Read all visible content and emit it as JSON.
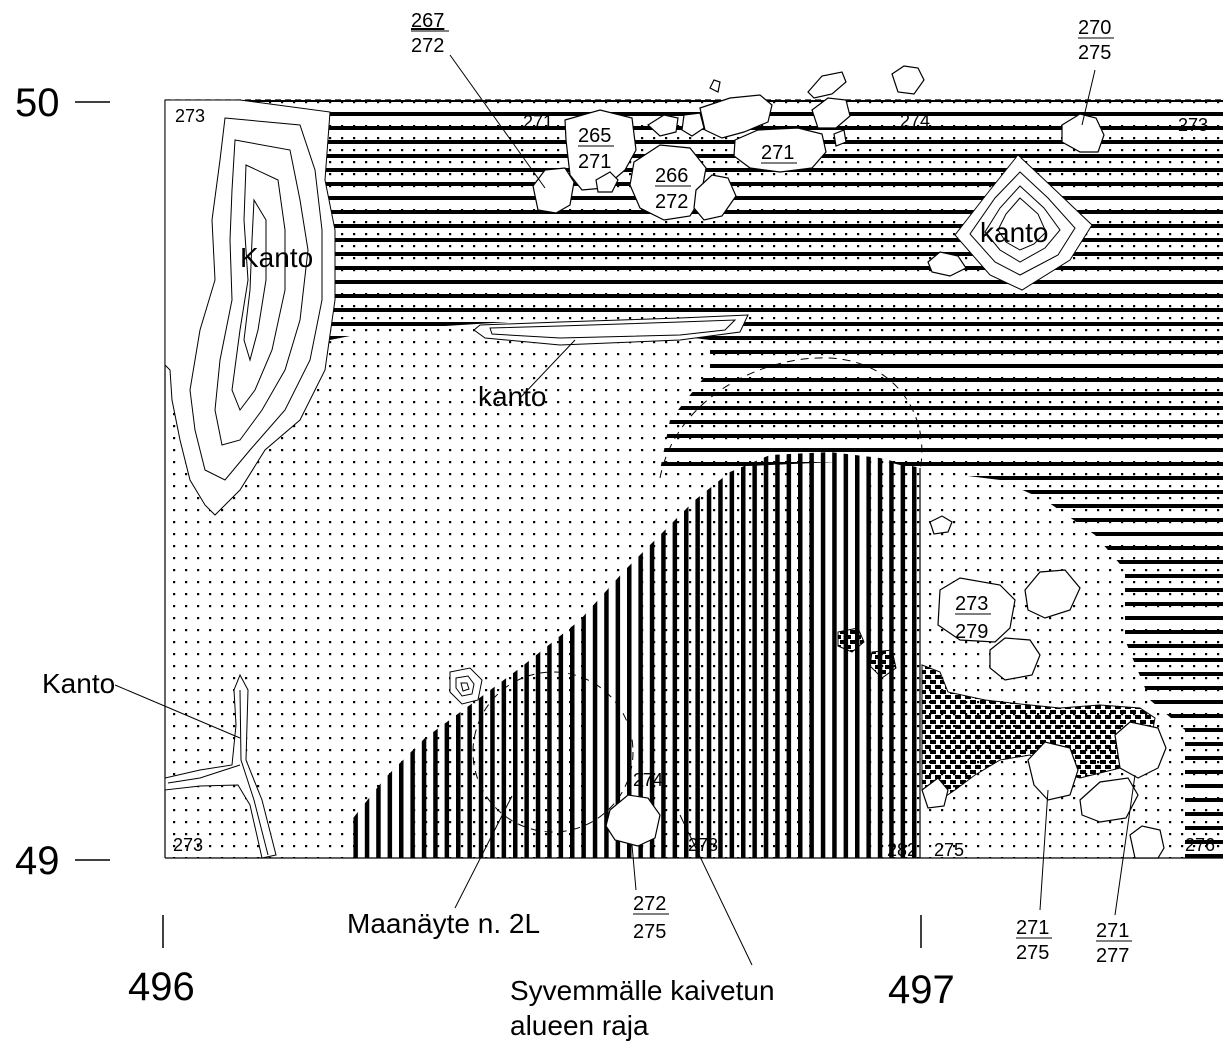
{
  "axes": {
    "y_top": "50",
    "y_bottom": "49",
    "x_left": "496",
    "x_right": "497"
  },
  "labels": {
    "kanto_left": "Kanto",
    "kanto_right": "kanto",
    "kanto_middle": "kanto",
    "kanto_outside": "Kanto",
    "soil_sample": "Maanäyte n. 2L",
    "deeper_area_line1": "Syvemmälle kaivetun",
    "deeper_area_line2": "alueen raja"
  },
  "elevations": {
    "e273_tl": "273",
    "e271_top": "271",
    "e274_top": "274",
    "e273_tr": "273",
    "e273_bl": "273",
    "e274_mid": "274",
    "e278": "278",
    "e282": "282",
    "e275_bottom": "275",
    "e276": "276"
  },
  "fractions": [
    {
      "id": "f267",
      "top": "267",
      "bottom": "272"
    },
    {
      "id": "f270",
      "top": "270",
      "bottom": "275"
    },
    {
      "id": "f265",
      "top": "265",
      "bottom": "271"
    },
    {
      "id": "f266",
      "top": "266",
      "bottom": "272"
    },
    {
      "id": "f271top",
      "top": "271",
      "bottom": ""
    },
    {
      "id": "f273",
      "top": "273",
      "bottom": "279"
    },
    {
      "id": "f272",
      "top": "272",
      "bottom": "275"
    },
    {
      "id": "f271a",
      "top": "271",
      "bottom": "275"
    },
    {
      "id": "f271b",
      "top": "271",
      "bottom": "277"
    }
  ],
  "colors": {
    "ink": "#000000",
    "paper": "#ffffff"
  }
}
